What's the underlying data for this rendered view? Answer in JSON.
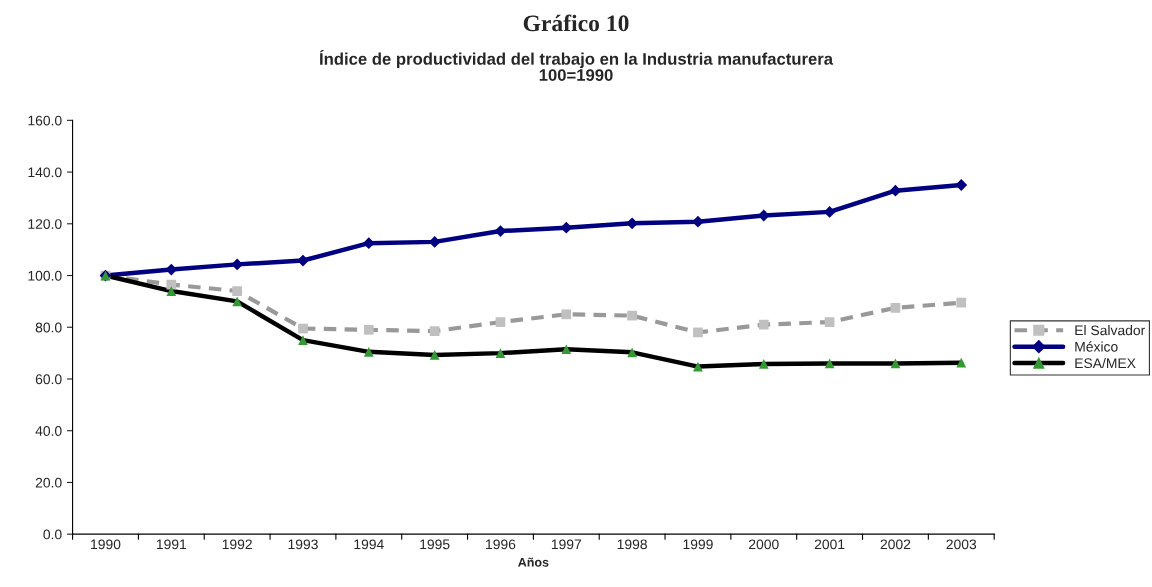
{
  "chart_data": {
    "type": "line",
    "title": "Gráfico 10",
    "subtitle": "Índice de productividad del trabajo en la Industria manufacturera\n100=1990",
    "xlabel": "Años",
    "categories": [
      "1990",
      "1991",
      "1992",
      "1993",
      "1994",
      "1995",
      "1996",
      "1997",
      "1998",
      "1999",
      "2000",
      "2001",
      "2002",
      "2003"
    ],
    "series": [
      {
        "name": "El Salvador",
        "color": "#999999",
        "colors": [
          "#c0c0c0",
          "#c0c0c0",
          "#c0c0c0",
          "#c0c0c0",
          "#c0c0c0",
          "#c0c0c0",
          "#c0c0c0",
          "#c0c0c0",
          "#c0c0c0",
          "#c0c0c0",
          "#c0c0c0",
          "#c0c0c0",
          "#c0c0c0",
          "#c0c0c0"
        ],
        "marker": "square",
        "line_style": "dashed",
        "values": [
          100,
          96.5,
          94,
          79.5,
          79,
          78.5,
          82,
          85,
          84.5,
          78,
          81,
          82,
          87.5,
          89.5
        ]
      },
      {
        "name": "México",
        "color": "#000080",
        "marker": "diamond",
        "line_style": "solid",
        "values": [
          100,
          102.3,
          104.3,
          105.8,
          112.5,
          113,
          117.2,
          118.5,
          120.2,
          120.8,
          123.2,
          124.6,
          132.8,
          135
        ]
      },
      {
        "name": "ESA/MEX",
        "color": "#000000",
        "colors": [
          "#339933",
          "#339933",
          "#339933",
          "#339933",
          "#339933",
          "#339933",
          "#339933",
          "#339933",
          "#339933",
          "#339933",
          "#339933",
          "#339933",
          "#339933",
          "#339933"
        ],
        "marker": "triangle",
        "line_style": "solid",
        "values": [
          100,
          94,
          90,
          75,
          70.5,
          69.3,
          70,
          71.5,
          70.3,
          64.8,
          65.8,
          66,
          66,
          66.3
        ]
      }
    ],
    "ylim": [
      0,
      160
    ],
    "yticks": [
      {
        "value": 0,
        "label": "0.0"
      },
      {
        "value": 20,
        "label": "20.0"
      },
      {
        "value": 40,
        "label": "40.0"
      },
      {
        "value": 60,
        "label": "60.0"
      },
      {
        "value": 80,
        "label": "80.0"
      },
      {
        "value": 100,
        "label": "100.0"
      },
      {
        "value": 120,
        "label": "120.0"
      },
      {
        "value": 140,
        "label": "140.0"
      },
      {
        "value": 160,
        "label": "160.0"
      }
    ],
    "grid": false,
    "legend": "right"
  }
}
